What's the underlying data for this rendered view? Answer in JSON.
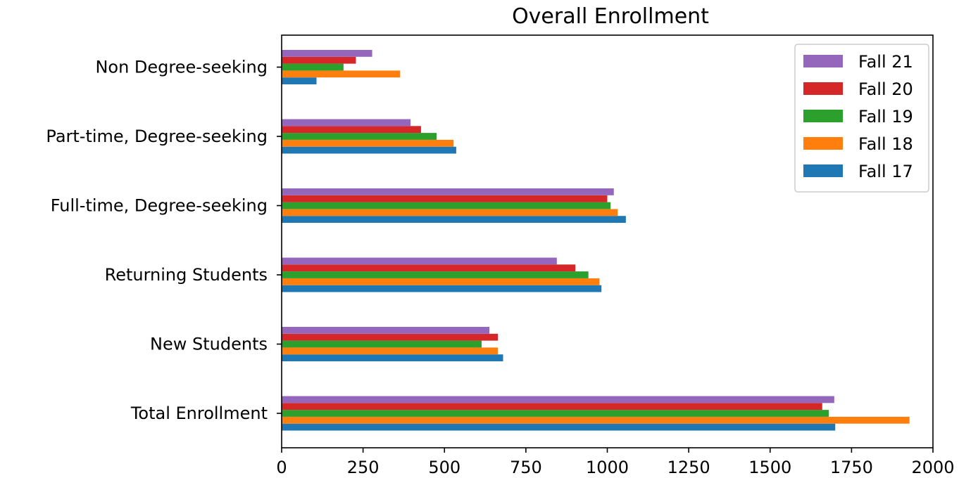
{
  "chart_data": {
    "type": "bar",
    "orientation": "horizontal",
    "title": "Overall Enrollment",
    "xlabel": "",
    "ylabel": "",
    "xlim": [
      0,
      2000
    ],
    "xticks": [
      0,
      250,
      500,
      750,
      1000,
      1250,
      1500,
      1750,
      2000
    ],
    "grid": false,
    "legend_position": "top-right",
    "categories": [
      "Total Enrollment",
      "New Students",
      "Returning Students",
      "Full-time, Degree-seeking",
      "Part-time, Degree-seeking",
      "Non Degree-seeking"
    ],
    "series": [
      {
        "name": "Fall 17",
        "color": "#1f77b4",
        "values": [
          1700,
          680,
          982,
          1057,
          536,
          107
        ]
      },
      {
        "name": "Fall 18",
        "color": "#ff7f0e",
        "values": [
          1928,
          664,
          976,
          1032,
          528,
          364
        ]
      },
      {
        "name": "Fall 19",
        "color": "#2ca02c",
        "values": [
          1680,
          614,
          942,
          1010,
          476,
          190
        ]
      },
      {
        "name": "Fall 20",
        "color": "#d62728",
        "values": [
          1660,
          664,
          902,
          1000,
          428,
          228
        ]
      },
      {
        "name": "Fall 21",
        "color": "#9467bd",
        "values": [
          1697,
          638,
          845,
          1020,
          396,
          278
        ]
      }
    ]
  }
}
